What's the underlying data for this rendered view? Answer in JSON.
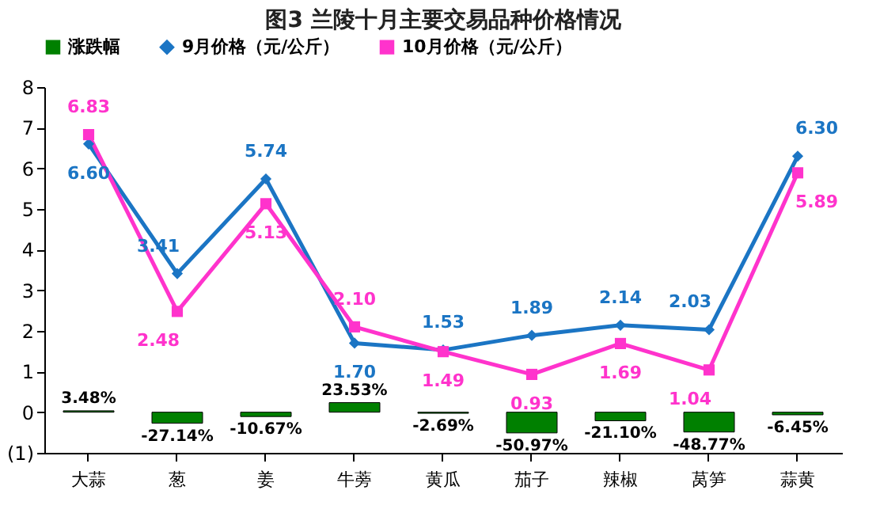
{
  "chart_data": {
    "type": "bar",
    "title": "图3  兰陵十月主要交易品种价格情况",
    "categories": [
      "大蒜",
      "葱",
      "姜",
      "牛蒡",
      "黄瓜",
      "茄子",
      "辣椒",
      "莴笋",
      "蒜黄"
    ],
    "series": [
      {
        "name": "涨跌幅",
        "type": "bar",
        "color": "#008000",
        "values": [
          0.0348,
          -0.2714,
          -0.1067,
          0.2353,
          -0.0269,
          -0.5097,
          -0.211,
          -0.4877,
          -0.0645
        ],
        "value_labels": [
          "3.48%",
          "-27.14%",
          "-10.67%",
          "23.53%",
          "-2.69%",
          "-50.97%",
          "-21.10%",
          "-48.77%",
          "-6.45%"
        ]
      },
      {
        "name": "9月价格（元/公斤）",
        "type": "line",
        "color": "#1b75c4",
        "marker": "diamond",
        "values": [
          6.6,
          3.41,
          5.74,
          1.7,
          1.53,
          1.89,
          2.14,
          2.03,
          6.3
        ],
        "value_labels": [
          "6.60",
          "3.41",
          "5.74",
          "1.70",
          "1.53",
          "1.89",
          "2.14",
          "2.03",
          "6.30"
        ]
      },
      {
        "name": "10月价格（元/公斤）",
        "type": "line",
        "color": "#ff33cc",
        "marker": "square",
        "values": [
          6.83,
          2.48,
          5.13,
          2.1,
          1.49,
          0.93,
          1.69,
          1.04,
          5.89
        ],
        "value_labels": [
          "6.83",
          "2.48",
          "5.13",
          "2.10",
          "1.49",
          "0.93",
          "1.69",
          "1.04",
          "5.89"
        ]
      }
    ],
    "ylim": [
      -1,
      8
    ],
    "yticks": [
      {
        "value": -1,
        "label": "(1)"
      },
      0,
      1,
      2,
      3,
      4,
      5,
      6,
      7,
      8
    ],
    "legend": "top"
  }
}
